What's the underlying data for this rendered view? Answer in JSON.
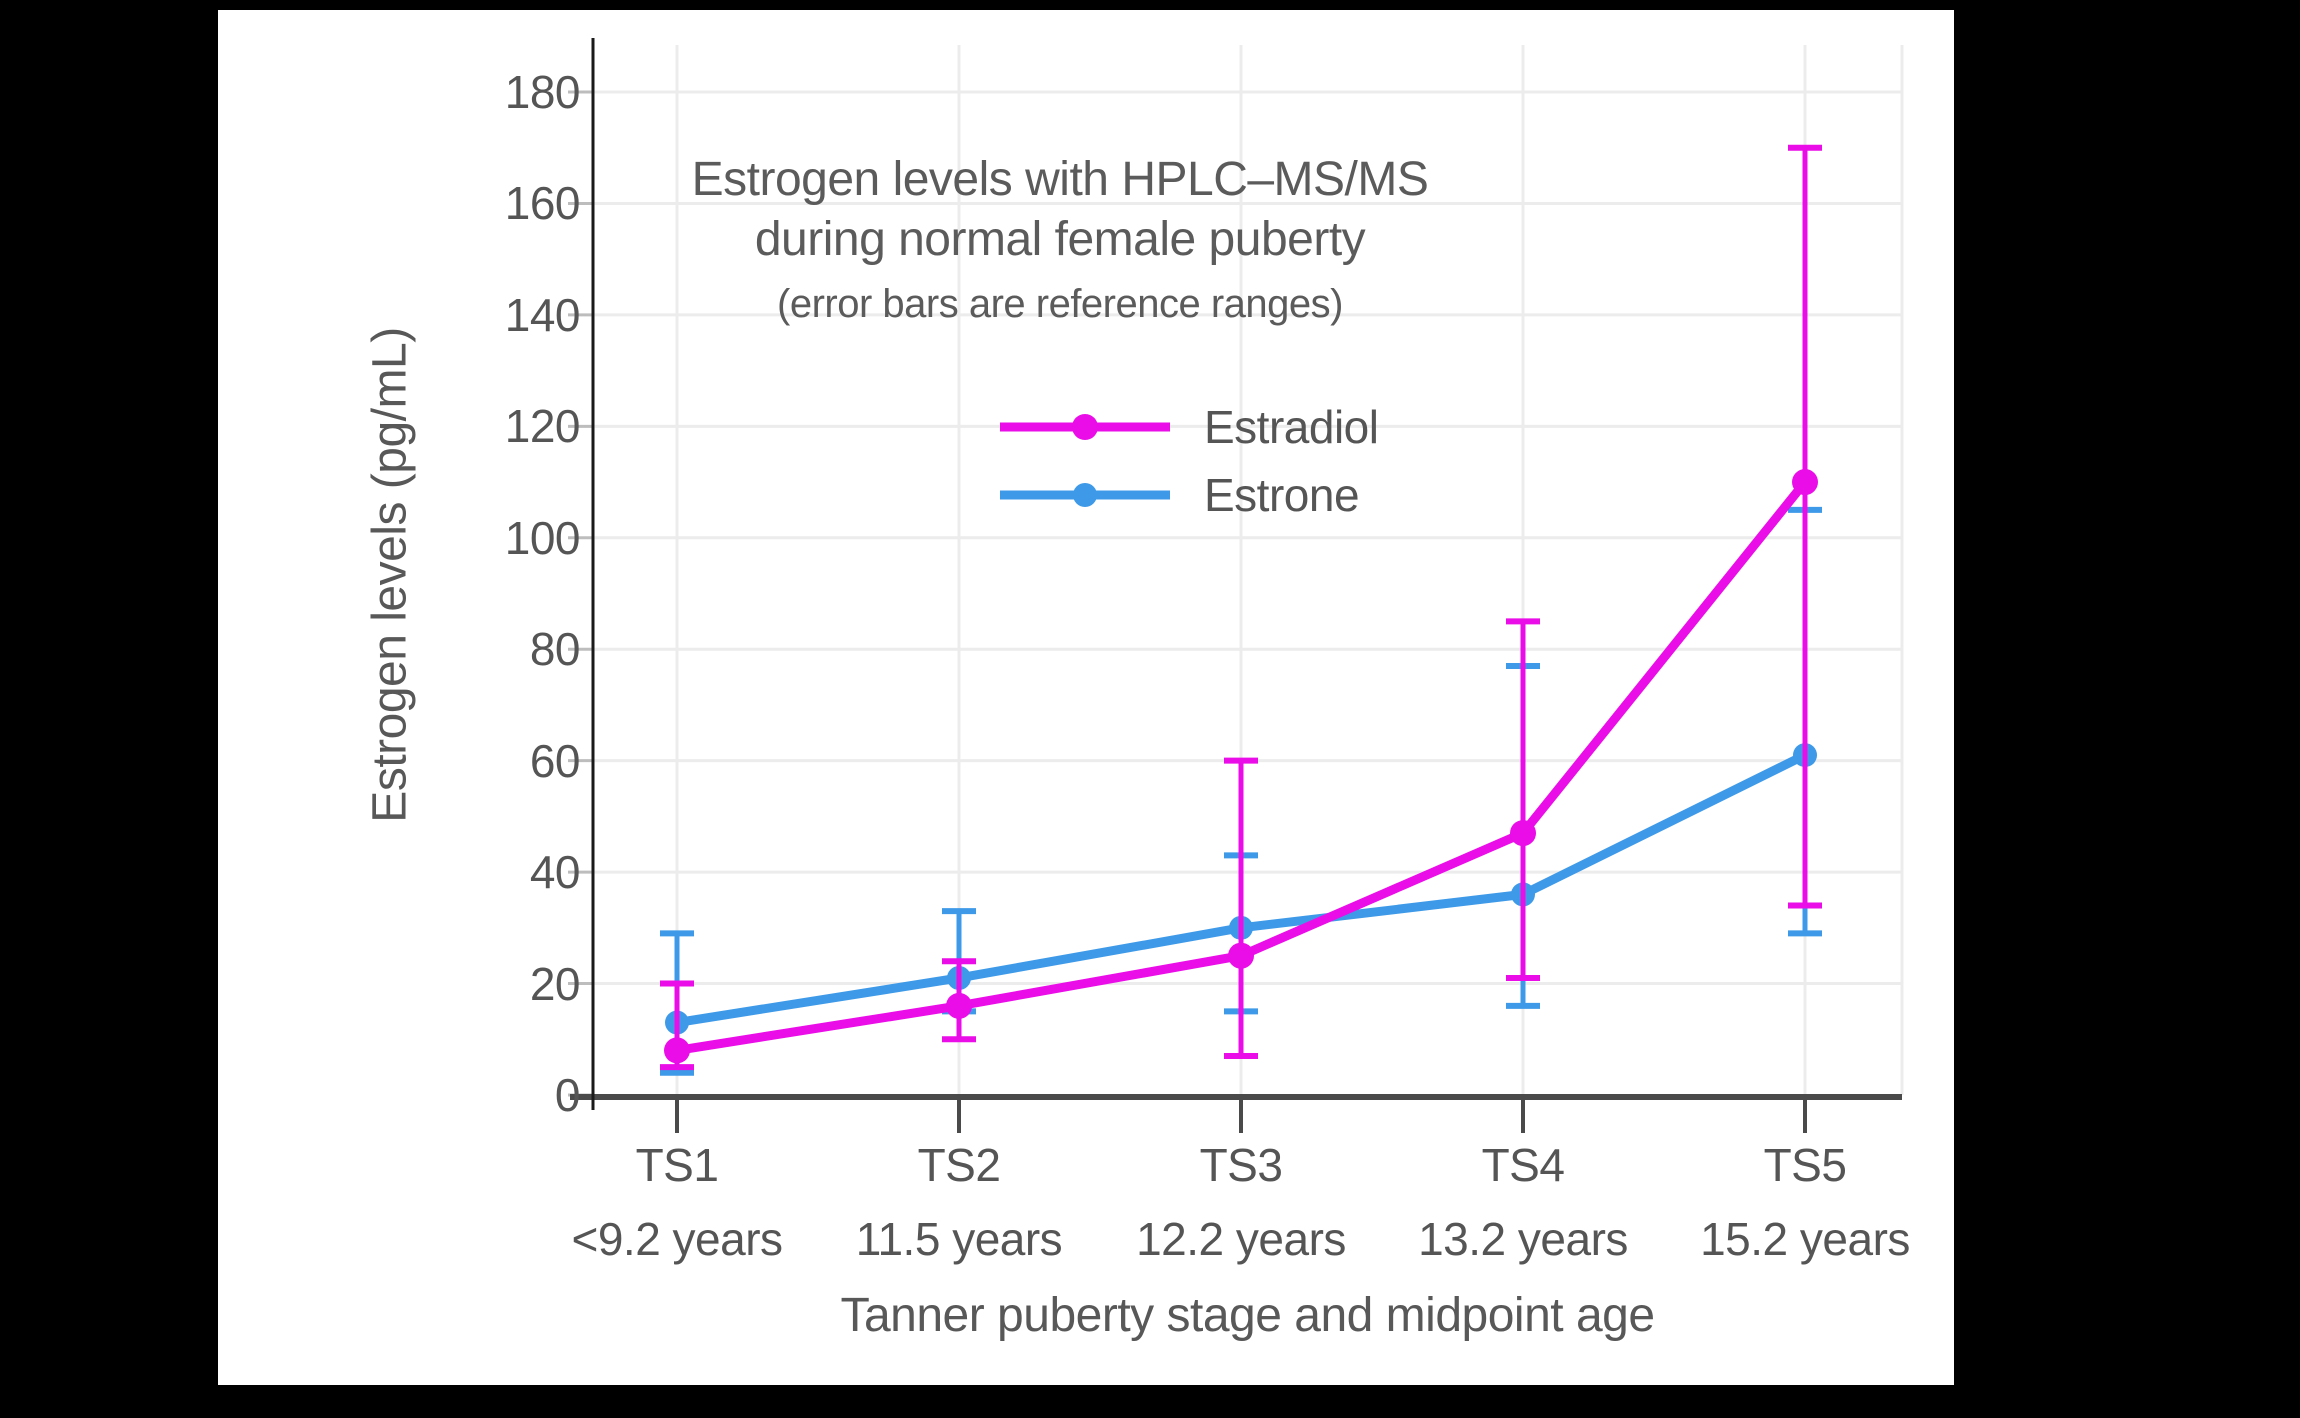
{
  "page": {
    "background": "#000000",
    "canvas_background": "#ffffff"
  },
  "chart_data": {
    "type": "line",
    "title_lines": [
      "Estrogen levels with HPLC–MS/MS",
      "during normal female puberty"
    ],
    "subtitle": "(error bars are reference ranges)",
    "xlabel": "Tanner puberty stage and midpoint age",
    "ylabel": "Estrogen levels (pg/mL)",
    "categories": [
      "TS1",
      "TS2",
      "TS3",
      "TS4",
      "TS5"
    ],
    "category_ages": [
      "<9.2 years",
      "11.5 years",
      "12.2 years",
      "13.2 years",
      "15.2 years"
    ],
    "yticks": [
      0,
      20,
      40,
      60,
      80,
      100,
      120,
      140,
      160,
      180
    ],
    "ylim": [
      0,
      188
    ],
    "grid": true,
    "legend_position": "inside-top-center",
    "series": [
      {
        "name": "Estradiol",
        "color": "#EA0DE8",
        "values": [
          8,
          16,
          25,
          47,
          110
        ],
        "err_low": [
          5,
          10,
          7,
          21,
          34
        ],
        "err_high": [
          20,
          24,
          60,
          85,
          170
        ]
      },
      {
        "name": "Estrone",
        "color": "#3E9AE8",
        "values": [
          13,
          21,
          30,
          36,
          61
        ],
        "err_low": [
          4,
          15,
          15,
          16,
          29
        ],
        "err_high": [
          29,
          33,
          43,
          77,
          105
        ]
      }
    ],
    "colors": {
      "gridline": "#ECECEC",
      "axis": "#4a4a4a",
      "yaxis_line": "#1a1a1a",
      "tick_dash": "#bdbdbd",
      "text": "#5b5b5b"
    }
  }
}
